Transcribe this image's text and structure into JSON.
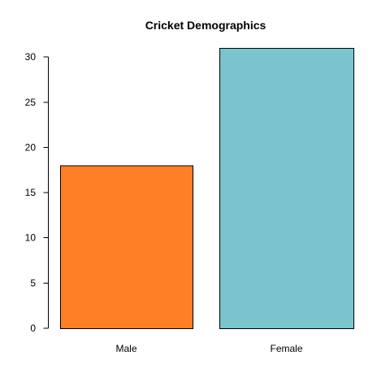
{
  "chart_data": {
    "type": "bar",
    "title": "Cricket Demographics",
    "xlabel": "",
    "ylabel": "",
    "categories": [
      "Male",
      "Female"
    ],
    "values": [
      18,
      31
    ],
    "colors": [
      "#ff7f27",
      "#7ac4ce"
    ],
    "ylim": [
      0,
      31
    ],
    "yticks": [
      0,
      5,
      10,
      15,
      20,
      25,
      30
    ],
    "ytick_labels": [
      "0",
      "5",
      "10",
      "15",
      "20",
      "25",
      "30"
    ],
    "grid": false,
    "legend": "none"
  }
}
